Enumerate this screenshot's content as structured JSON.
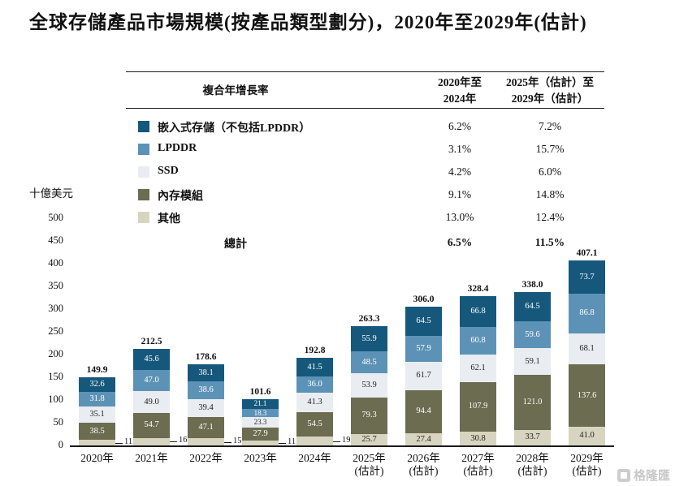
{
  "page": {
    "title": "全球存儲產品市場規模(按產品類型劃分)，2020年至2029年(估計)",
    "watermark": "格隆匯"
  },
  "cagr_table": {
    "header": {
      "col1": "複合年增長率",
      "col2": "2020年至\n2024年",
      "col3": "2025年（估計）至\n2029年（估計）"
    },
    "rows": [
      {
        "label": "嵌入式存儲（不包括LPDDR）",
        "swatch": "#15587c",
        "period1": "6.2%",
        "period2": "7.2%"
      },
      {
        "label": "LPDDR",
        "swatch": "#5d92b7",
        "period1": "3.1%",
        "period2": "15.7%"
      },
      {
        "label": "SSD",
        "swatch": "#e9edf1",
        "period1": "4.2%",
        "period2": "6.0%"
      },
      {
        "label": "內存模組",
        "swatch": "#6b6c50",
        "period1": "9.1%",
        "period2": "14.8%"
      },
      {
        "label": "其他",
        "swatch": "#d7d5bf",
        "period1": "13.0%",
        "period2": "12.4%"
      }
    ],
    "total_row": {
      "label": "總計",
      "period1": "6.5%",
      "period2": "11.5%"
    }
  },
  "chart_data": {
    "type": "bar",
    "stacked": true,
    "title": "全球存儲產品市場規模(按產品類型劃分)，2020年至2029年(估計)",
    "ylabel": "十億美元",
    "xlabel": "",
    "ylim": [
      0,
      500
    ],
    "ytick_step": 50,
    "grid": false,
    "legend_position": "top-table",
    "categories": [
      "2020年",
      "2021年",
      "2022年",
      "2023年",
      "2024年",
      "2025年\n(估計)",
      "2026年\n(估計)",
      "2027年\n(估計)",
      "2028年\n(估計)",
      "2029年\n(估計)"
    ],
    "series": [
      {
        "name": "其他",
        "color": "#d7d5bf",
        "label_color": "#222222",
        "values": [
          11.9,
          16.2,
          15.3,
          11.1,
          19.4,
          25.7,
          27.4,
          30.8,
          33.7,
          41.0
        ]
      },
      {
        "name": "內存模組",
        "color": "#6b6c50",
        "label_color": "#ffffff",
        "values": [
          38.5,
          54.7,
          47.1,
          27.9,
          54.5,
          79.3,
          94.4,
          107.9,
          121.0,
          137.6
        ]
      },
      {
        "name": "SSD",
        "color": "#e9edf1",
        "label_color": "#222222",
        "values": [
          35.1,
          49.0,
          39.4,
          23.3,
          41.3,
          53.9,
          61.7,
          62.1,
          59.1,
          68.1
        ]
      },
      {
        "name": "LPDDR",
        "color": "#5d92b7",
        "label_color": "#ffffff",
        "values": [
          31.8,
          47.0,
          38.6,
          18.3,
          36.0,
          48.5,
          57.9,
          60.8,
          59.6,
          86.8
        ]
      },
      {
        "name": "嵌入式存儲（不包括LPDDR）",
        "color": "#15587c",
        "label_color": "#ffffff",
        "values": [
          32.6,
          45.6,
          38.1,
          21.1,
          41.5,
          55.9,
          64.5,
          66.8,
          64.5,
          73.7
        ]
      }
    ],
    "totals": [
      149.9,
      212.5,
      178.6,
      101.6,
      192.8,
      263.3,
      306.0,
      328.4,
      338.0,
      407.1
    ],
    "outside_label_series": "其他",
    "outside_label_count": 5
  }
}
